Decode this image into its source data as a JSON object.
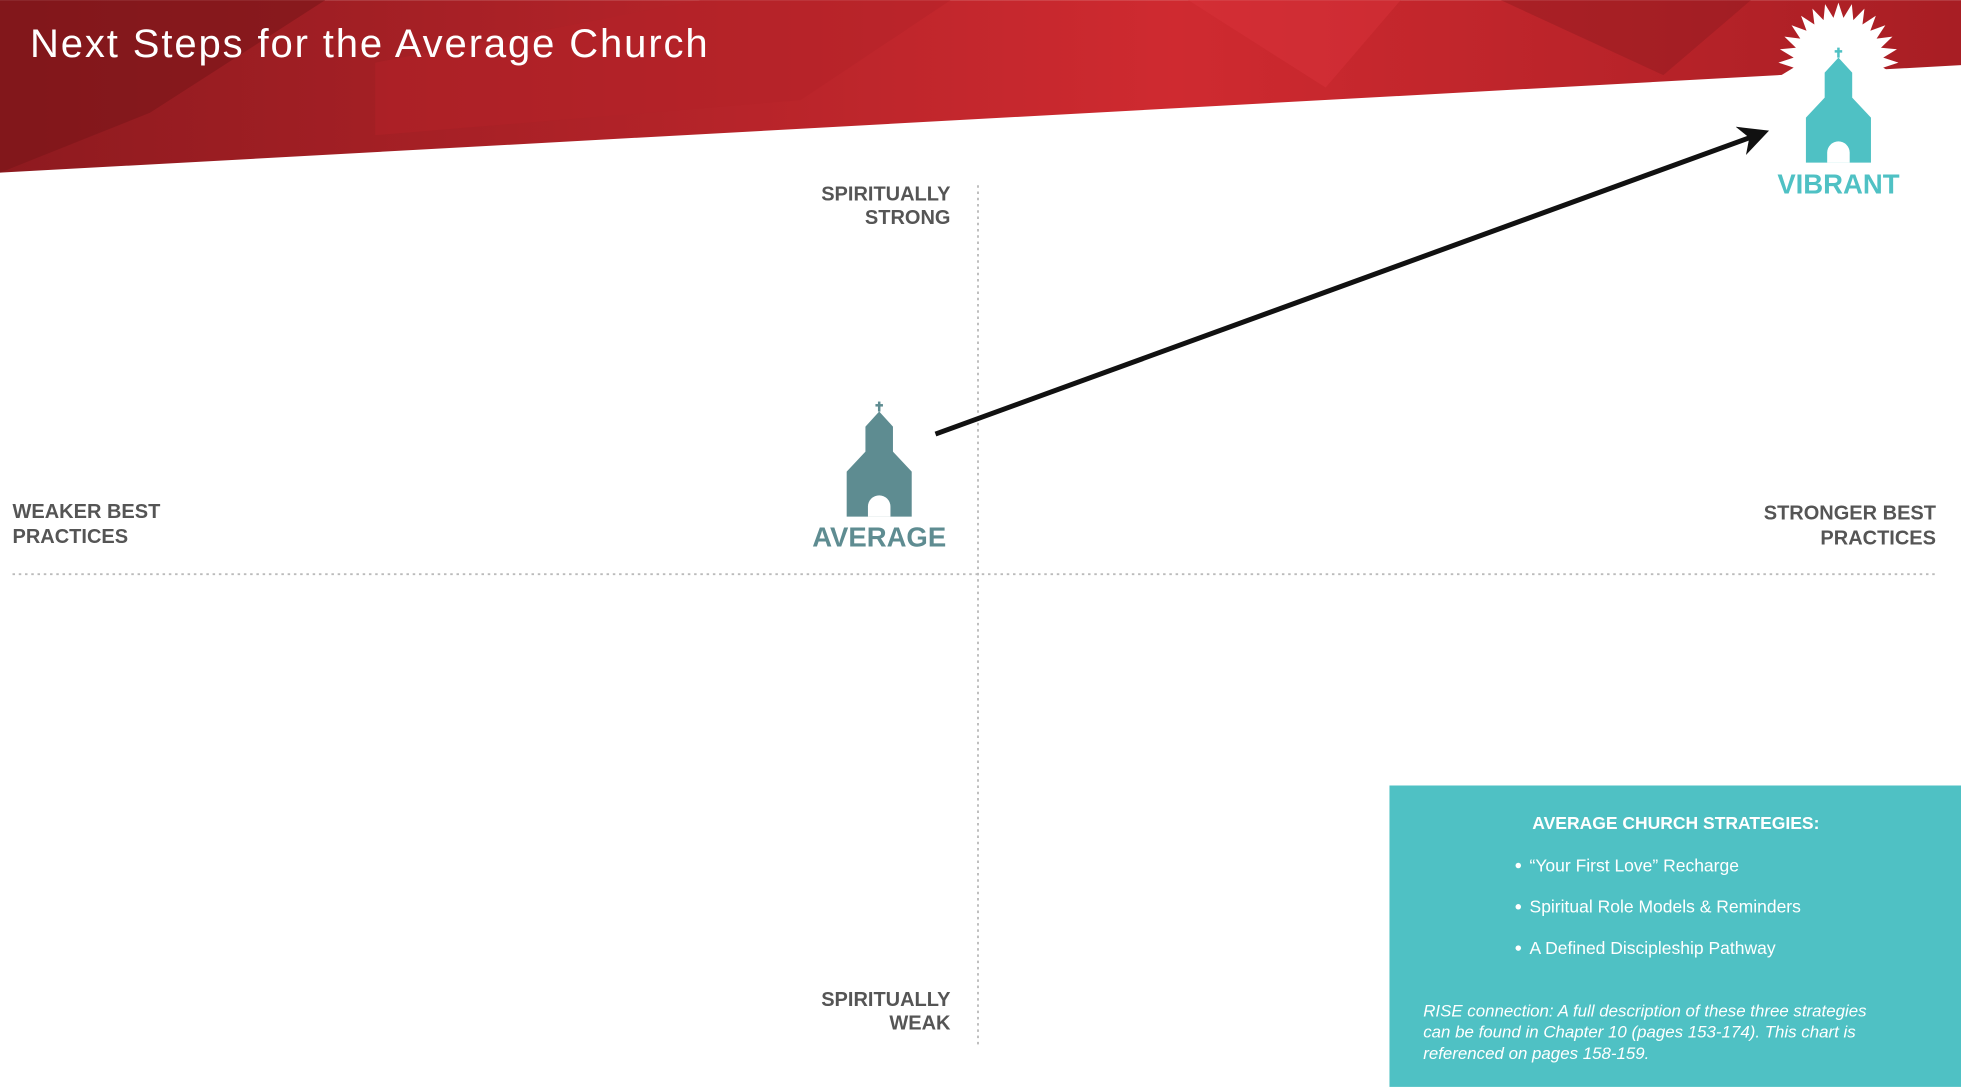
{
  "header": {
    "title": "Next Steps for the Average Church"
  },
  "axes": {
    "top": [
      "SPIRITUALLY",
      "STRONG"
    ],
    "bottom": [
      "SPIRITUALLY",
      "WEAK"
    ],
    "left": [
      "WEAKER BEST",
      "PRACTICES"
    ],
    "right": [
      "STRONGER BEST",
      "PRACTICES"
    ]
  },
  "nodes": [
    {
      "label": "AVERAGE"
    },
    {
      "label": "VIBRANT"
    }
  ],
  "panel": {
    "heading": "AVERAGE CHURCH STRATEGIES:",
    "items": [
      "“Your First Love” Recharge",
      "Spiritual Role Models & Reminders",
      "A Defined Discipleship Pathway"
    ],
    "note": [
      "RISE connection: A full description of these three strategies",
      "can be found in Chapter 10 (pages 153-174). This chart is",
      "referenced on pages 158-159."
    ]
  }
}
